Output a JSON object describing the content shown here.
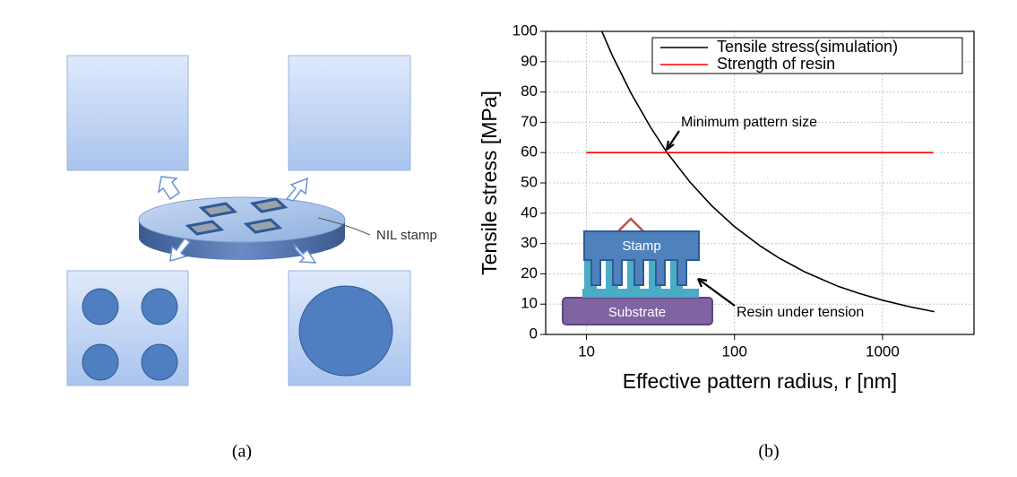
{
  "panel_a": {
    "label": "NIL stamp",
    "caption": "(a)"
  },
  "chart_data": {
    "type": "line",
    "caption": "(b)",
    "x_label": "Effective pattern radius, r [nm]",
    "y_label": "Tensile stress [MPa]",
    "xscale": "log",
    "xlim": [
      5.3,
      4150
    ],
    "xticks": [
      10,
      100,
      1000
    ],
    "ylim": [
      0,
      100
    ],
    "yticks": [
      0,
      10,
      20,
      30,
      40,
      50,
      60,
      70,
      80,
      90,
      100
    ],
    "grid": true,
    "legend": "upper right",
    "series": [
      {
        "name": "Tensile stress(simulation)",
        "color": "#000000",
        "x": [
          12.7,
          15,
          20,
          27,
          35,
          50,
          70,
          100,
          150,
          200,
          300,
          500,
          700,
          1000,
          1500,
          2240
        ],
        "values": [
          100,
          91.9,
          79.6,
          68.5,
          60,
          50.3,
          42.5,
          35.6,
          29.1,
          25.2,
          20.6,
          15.9,
          13.5,
          11.3,
          9.2,
          7.5
        ]
      },
      {
        "name": "Strength of resin",
        "color": "#ff0000",
        "x": [
          10,
          2200
        ],
        "values": [
          60,
          60
        ]
      }
    ],
    "annotations": [
      "Minimum pattern size",
      "Resin under tension"
    ],
    "inset": {
      "top": "Stamp",
      "bottom": "Substrate"
    }
  }
}
